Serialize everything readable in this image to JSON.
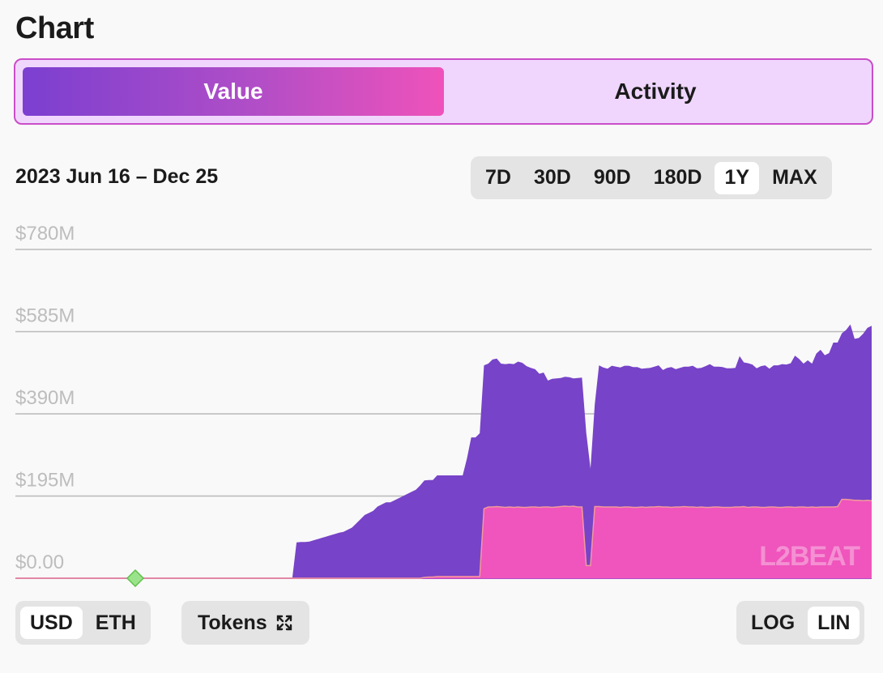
{
  "header": {
    "title": "Chart"
  },
  "tabs": [
    {
      "label": "Value"
    },
    {
      "label": "Activity"
    }
  ],
  "range_label": "2023 Jun 16 – Dec 25",
  "periods": [
    "7D",
    "30D",
    "90D",
    "180D",
    "1Y",
    "MAX"
  ],
  "active_period": "1Y",
  "units": [
    "USD",
    "ETH"
  ],
  "active_unit": "USD",
  "tokens_label": "Tokens",
  "scales": [
    "LOG",
    "LIN"
  ],
  "active_scale": "LIN",
  "watermark": "L2BEAT",
  "colors": {
    "accent_purple": "#7743c8",
    "accent_pink": "#ef55bc",
    "marker": "#9be38a"
  },
  "chart_data": {
    "type": "area",
    "stacked": true,
    "x_start": "2023-06-16",
    "x_end": "2023-12-25",
    "ylim": [
      0,
      780
    ],
    "y_ticks": [
      "$780M",
      "$585M",
      "$390M",
      "$195M",
      "$0.00"
    ],
    "y_tick_values": [
      780,
      585,
      390,
      195,
      0
    ],
    "grid": true,
    "series": [
      {
        "color": "#ef55bc",
        "values": [
          0,
          0,
          0,
          0,
          0,
          0,
          0,
          0,
          0,
          0,
          0,
          0,
          0,
          0,
          0,
          0,
          0,
          0,
          0,
          0,
          0,
          0,
          0,
          0,
          0,
          0,
          0,
          0,
          0,
          0,
          0,
          0,
          0,
          0,
          0,
          0,
          0,
          0,
          0,
          0,
          0,
          0,
          0,
          0,
          0,
          0,
          0,
          0,
          0,
          0,
          0,
          0,
          0,
          0,
          0,
          0,
          0,
          0,
          0,
          0,
          0,
          0,
          0,
          0,
          0,
          0,
          0,
          0,
          0,
          0,
          0,
          0,
          0,
          0,
          0,
          0,
          0,
          0,
          0,
          0,
          0,
          0,
          0,
          0,
          0,
          0,
          0,
          0,
          0,
          0,
          0,
          0,
          0,
          0,
          0,
          0,
          2,
          3,
          3,
          4,
          4,
          4,
          4,
          4,
          4,
          4,
          4,
          4,
          4,
          4,
          165,
          169,
          169,
          170,
          169,
          168,
          169,
          168,
          169,
          168,
          168,
          169,
          169,
          168,
          169,
          169,
          168,
          169,
          170,
          171,
          170,
          171,
          169,
          169,
          30,
          30,
          170,
          170,
          169,
          169,
          169,
          169,
          168,
          169,
          169,
          168,
          168,
          169,
          168,
          169,
          169,
          170,
          169,
          169,
          168,
          169,
          169,
          170,
          169,
          169,
          168,
          169,
          168,
          168,
          169,
          169,
          168,
          168,
          168,
          169,
          169,
          170,
          168,
          169,
          169,
          168,
          168,
          169,
          169,
          168,
          168,
          169,
          169,
          168,
          169,
          169,
          168,
          169,
          168,
          169,
          169,
          169,
          169,
          170,
          187,
          187,
          186,
          185,
          185,
          184,
          185,
          184
        ]
      },
      {
        "color": "#7743c8",
        "values": [
          0,
          0,
          0,
          0,
          0,
          0,
          0,
          0,
          0,
          0,
          0,
          0,
          0,
          0,
          0,
          0,
          0,
          0,
          0,
          0,
          0,
          0,
          0,
          0,
          0,
          0,
          0,
          0,
          0,
          0,
          0,
          0,
          0,
          0,
          0,
          0,
          0,
          0,
          0,
          0,
          0,
          0,
          0,
          0,
          0,
          0,
          0,
          0,
          0,
          0,
          0,
          0,
          0,
          0,
          0,
          0,
          0,
          0,
          0,
          0,
          0,
          0,
          0,
          0,
          0,
          0,
          85,
          86,
          86,
          87,
          90,
          93,
          96,
          99,
          102,
          105,
          108,
          110,
          115,
          120,
          130,
          140,
          150,
          155,
          160,
          170,
          175,
          180,
          180,
          185,
          190,
          195,
          200,
          205,
          210,
          220,
          230,
          230,
          230,
          240,
          240,
          240,
          240,
          240,
          240,
          240,
          280,
          330,
          330,
          340,
          340,
          340,
          350,
          351,
          340,
          340,
          340,
          340,
          345,
          343,
          335,
          330,
          327,
          317,
          319,
          300,
          305,
          305,
          305,
          307,
          307,
          303,
          306,
          307,
          315,
          230,
          242,
          335,
          331,
          328,
          335,
          333,
          332,
          335,
          335,
          333,
          333,
          328,
          330,
          330,
          333,
          335,
          325,
          330,
          333,
          327,
          330,
          332,
          333,
          335,
          330,
          330,
          335,
          340,
          333,
          333,
          333,
          330,
          330,
          330,
          358,
          342,
          342,
          338,
          329,
          335,
          337,
          328,
          336,
          337,
          340,
          338,
          341,
          360,
          351,
          340,
          349,
          340,
          365,
          373,
          360,
          365,
          390,
          389,
          394,
          402,
          416,
          383,
          385,
          396,
          409,
          415,
          417,
          421,
          421,
          434,
          441,
          440
        ]
      }
    ]
  }
}
